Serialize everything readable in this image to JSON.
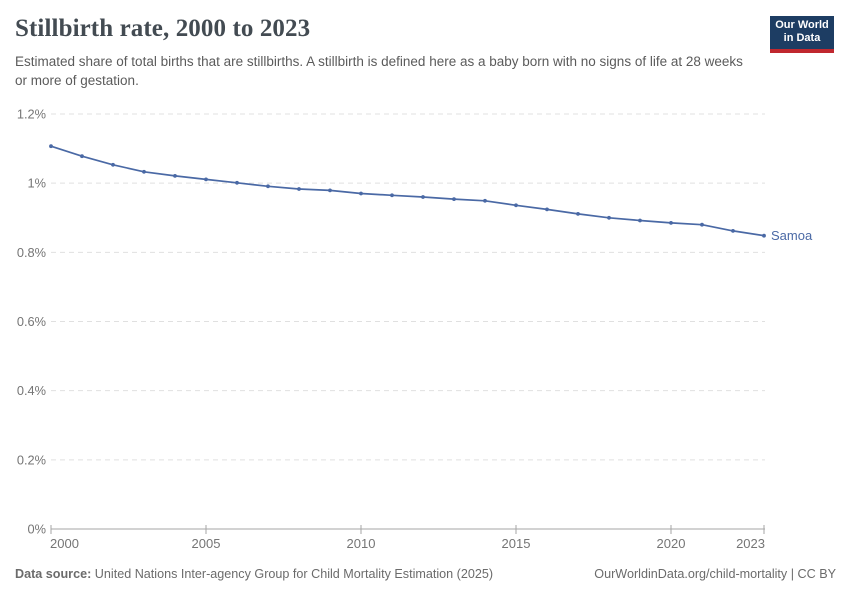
{
  "header": {
    "title": "Stillbirth rate, 2000 to 2023",
    "subtitle": "Estimated share of total births that are stillbirths. A stillbirth is defined here as a baby born with no signs of life at 28 weeks or more of gestation.",
    "logo": {
      "line1": "Our World",
      "line2": "in Data",
      "bg_color": "#1d3d63",
      "accent_color": "#c0282f"
    }
  },
  "chart_data": {
    "type": "line",
    "title": "Stillbirth rate, 2000 to 2023",
    "xlabel": "",
    "ylabel": "",
    "xlim": [
      2000,
      2023
    ],
    "ylim": [
      0,
      1.2
    ],
    "grid": "horizontal-dashed",
    "legend_position": "end-of-line-label",
    "x_ticks": [
      2000,
      2005,
      2010,
      2015,
      2020,
      2023
    ],
    "y_ticks": [
      {
        "value": 0,
        "label": "0%"
      },
      {
        "value": 0.2,
        "label": "0.2%"
      },
      {
        "value": 0.4,
        "label": "0.4%"
      },
      {
        "value": 0.6,
        "label": "0.6%"
      },
      {
        "value": 0.8,
        "label": "0.8%"
      },
      {
        "value": 1.0,
        "label": "1%"
      },
      {
        "value": 1.2,
        "label": "1.2%"
      }
    ],
    "x": [
      2000,
      2001,
      2002,
      2003,
      2004,
      2005,
      2006,
      2007,
      2008,
      2009,
      2010,
      2011,
      2012,
      2013,
      2014,
      2015,
      2016,
      2017,
      2018,
      2019,
      2020,
      2021,
      2022,
      2023
    ],
    "series": [
      {
        "name": "Samoa",
        "color": "#4a69a5",
        "values": [
          1.107,
          1.078,
          1.053,
          1.033,
          1.021,
          1.011,
          1.001,
          0.991,
          0.983,
          0.979,
          0.97,
          0.965,
          0.96,
          0.954,
          0.949,
          0.936,
          0.924,
          0.911,
          0.9,
          0.892,
          0.885,
          0.88,
          0.862,
          0.848
        ]
      }
    ],
    "axis_color": "#a6a6a6",
    "gridline_color": "#e0e0e0",
    "tick_label_color": "#757575"
  },
  "footer": {
    "source_label": "Data source:",
    "source_text": " United Nations Inter-agency Group for Child Mortality Estimation (2025)",
    "credit": "OurWorldinData.org/child-mortality | CC BY"
  }
}
